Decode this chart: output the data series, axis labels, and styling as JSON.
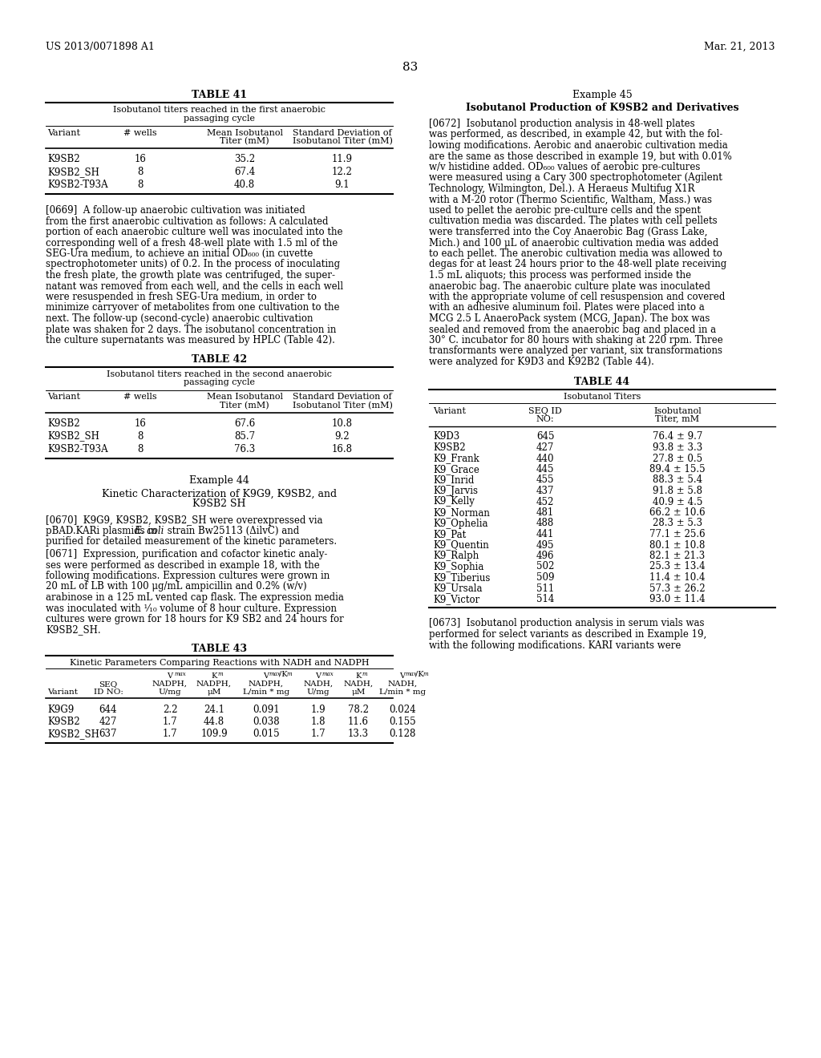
{
  "page_num": "83",
  "header_left": "US 2013/0071898 A1",
  "header_right": "Mar. 21, 2013",
  "bg_color": "#ffffff",
  "table41_title": "TABLE 41",
  "table41_subtitle1": "Isobutanol titers reached in the first anaerobic",
  "table41_subtitle2": "passaging cycle",
  "table41_data": [
    [
      "K9SB2",
      "16",
      "35.2",
      "11.9"
    ],
    [
      "K9SB2_SH",
      "8",
      "67.4",
      "12.2"
    ],
    [
      "K9SB2-T93A",
      "8",
      "40.8",
      "9.1"
    ]
  ],
  "table42_title": "TABLE 42",
  "table42_subtitle1": "Isobutanol titers reached in the second anaerobic",
  "table42_subtitle2": "passaging cycle",
  "table42_data": [
    [
      "K9SB2",
      "16",
      "67.6",
      "10.8"
    ],
    [
      "K9SB2_SH",
      "8",
      "85.7",
      "9.2"
    ],
    [
      "K9SB2-T93A",
      "8",
      "76.3",
      "16.8"
    ]
  ],
  "table43_title": "TABLE 43",
  "table43_subtitle": "Kinetic Parameters Comparing Reactions with NADH and NADPH",
  "table43_data": [
    [
      "K9G9",
      "644",
      "2.2",
      "24.1",
      "0.091",
      "1.9",
      "78.2",
      "0.024"
    ],
    [
      "K9SB2",
      "427",
      "1.7",
      "44.8",
      "0.038",
      "1.8",
      "11.6",
      "0.155"
    ],
    [
      "K9SB2_SH",
      "637",
      "1.7",
      "109.9",
      "0.015",
      "1.7",
      "13.3",
      "0.128"
    ]
  ],
  "example44_title": "Example 44",
  "example44_subtitle1": "Kinetic Characterization of K9G9, K9SB2, and",
  "example44_subtitle2": "K9SB2 SH",
  "example45_title": "Example 45",
  "example45_subtitle": "Isobutanol Production of K9SB2 and Derivatives",
  "table44_title": "TABLE 44",
  "table44_subtitle": "Isobutanol Titers",
  "table44_data": [
    [
      "K9D3",
      "645",
      "76.4 ± 9.7"
    ],
    [
      "K9SB2",
      "427",
      "93.8 ± 3.3"
    ],
    [
      "K9_Frank",
      "440",
      "27.8 ± 0.5"
    ],
    [
      "K9_Grace",
      "445",
      "89.4 ± 15.5"
    ],
    [
      "K9_Inrid",
      "455",
      "88.3 ± 5.4"
    ],
    [
      "K9_Jarvis",
      "437",
      "91.8 ± 5.8"
    ],
    [
      "K9_Kelly",
      "452",
      "40.9 ± 4.5"
    ],
    [
      "K9_Norman",
      "481",
      "66.2 ± 10.6"
    ],
    [
      "K9_Ophelia",
      "488",
      "28.3 ± 5.3"
    ],
    [
      "K9_Pat",
      "441",
      "77.1 ± 25.6"
    ],
    [
      "K9_Quentin",
      "495",
      "80.1 ± 10.8"
    ],
    [
      "K9_Ralph",
      "496",
      "82.1 ± 21.3"
    ],
    [
      "K9_Sophia",
      "502",
      "25.3 ± 13.4"
    ],
    [
      "K9_Tiberius",
      "509",
      "11.4 ± 10.4"
    ],
    [
      "K9_Ursala",
      "511",
      "57.3 ± 26.2"
    ],
    [
      "K9_Victor",
      "514",
      "93.0 ± 11.4"
    ]
  ]
}
